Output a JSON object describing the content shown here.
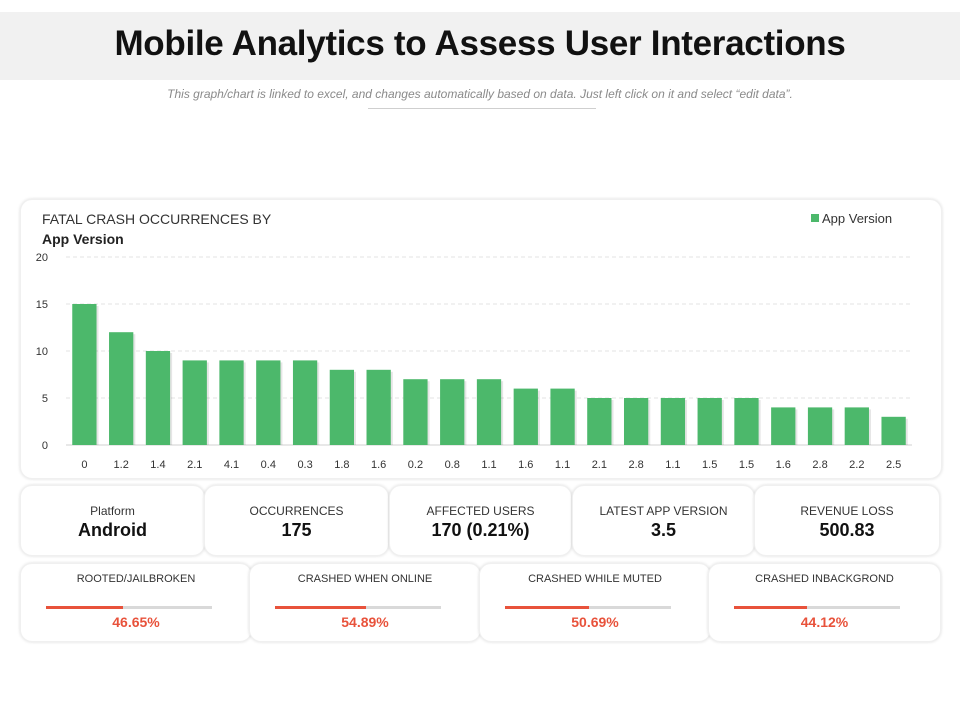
{
  "header": {
    "title": "Mobile Analytics to Assess User Interactions",
    "subtitle": "This graph/chart is linked to excel,  and changes  automatically based on data. Just left click on it and select “edit data”."
  },
  "chart": {
    "title_line1": "FATAL CRASH OCCURRENCES BY",
    "title_line2": "App Version"
  },
  "chart_data": {
    "type": "bar",
    "title": "FATAL CRASH OCCURRENCES BY App Version",
    "categories": [
      "0",
      "1.2",
      "1.4",
      "2.1",
      "4.1",
      "0.4",
      "0.3",
      "1.8",
      "1.6",
      "0.2",
      "0.8",
      "1.1",
      "1.6",
      "1.1",
      "2.1",
      "2.8",
      "1.1",
      "1.5",
      "1.5",
      "1.6",
      "2.8",
      "2.2",
      "2.5"
    ],
    "series": [
      {
        "name": "App Version",
        "values": [
          15,
          12,
          10,
          9,
          9,
          9,
          9,
          8,
          8,
          7,
          7,
          7,
          6,
          6,
          5,
          5,
          5,
          5,
          5,
          4,
          4,
          4,
          3
        ]
      }
    ],
    "yticks": [
      0,
      5,
      10,
      15,
      20
    ],
    "ylim": [
      0,
      20
    ],
    "xlabel": "",
    "ylabel": "",
    "grid": true,
    "legend": "top-right",
    "bar_color": "#4cb86b"
  },
  "stats": [
    {
      "label": "Platform",
      "value": "Android"
    },
    {
      "label": "OCCURRENCES",
      "value": "175"
    },
    {
      "label": "AFFECTED  USERS",
      "value": "170 (0.21%)"
    },
    {
      "label": "LATEST  APP  VERSION",
      "value": "3.5"
    },
    {
      "label": "REVENUE LOSS",
      "value": "500.83"
    }
  ],
  "progress": [
    {
      "label": "ROOTED/JAILBROKEN",
      "value": "46.65%",
      "fraction": 0.4665
    },
    {
      "label": "CRASHED WHEN ONLINE",
      "value": "54.89%",
      "fraction": 0.5489
    },
    {
      "label": "CRASHED WHILE MUTED",
      "value": "50.69%",
      "fraction": 0.5069
    },
    {
      "label": "CRASHED INBACKGROND",
      "value": "44.12%",
      "fraction": 0.4412
    }
  ],
  "colors": {
    "accent": "#e8523b",
    "bar": "#4cb86b",
    "track": "#d9d9d9"
  }
}
